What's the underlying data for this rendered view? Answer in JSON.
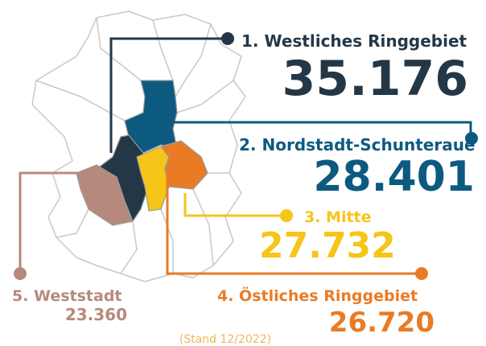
{
  "districts": [
    {
      "label": "1. Westliches Ringgebiet",
      "value": "35.176"
    },
    {
      "label": "2. Nordstadt-Schunteraue",
      "value": "28.401"
    },
    {
      "label": "3. Mitte",
      "value": "27.732"
    },
    {
      "label": "4. Östliches Ringgebiet",
      "value": "26.720"
    },
    {
      "label": "5. Weststadt",
      "value": "23.360"
    }
  ],
  "note": "(Stand 12/2022)"
}
